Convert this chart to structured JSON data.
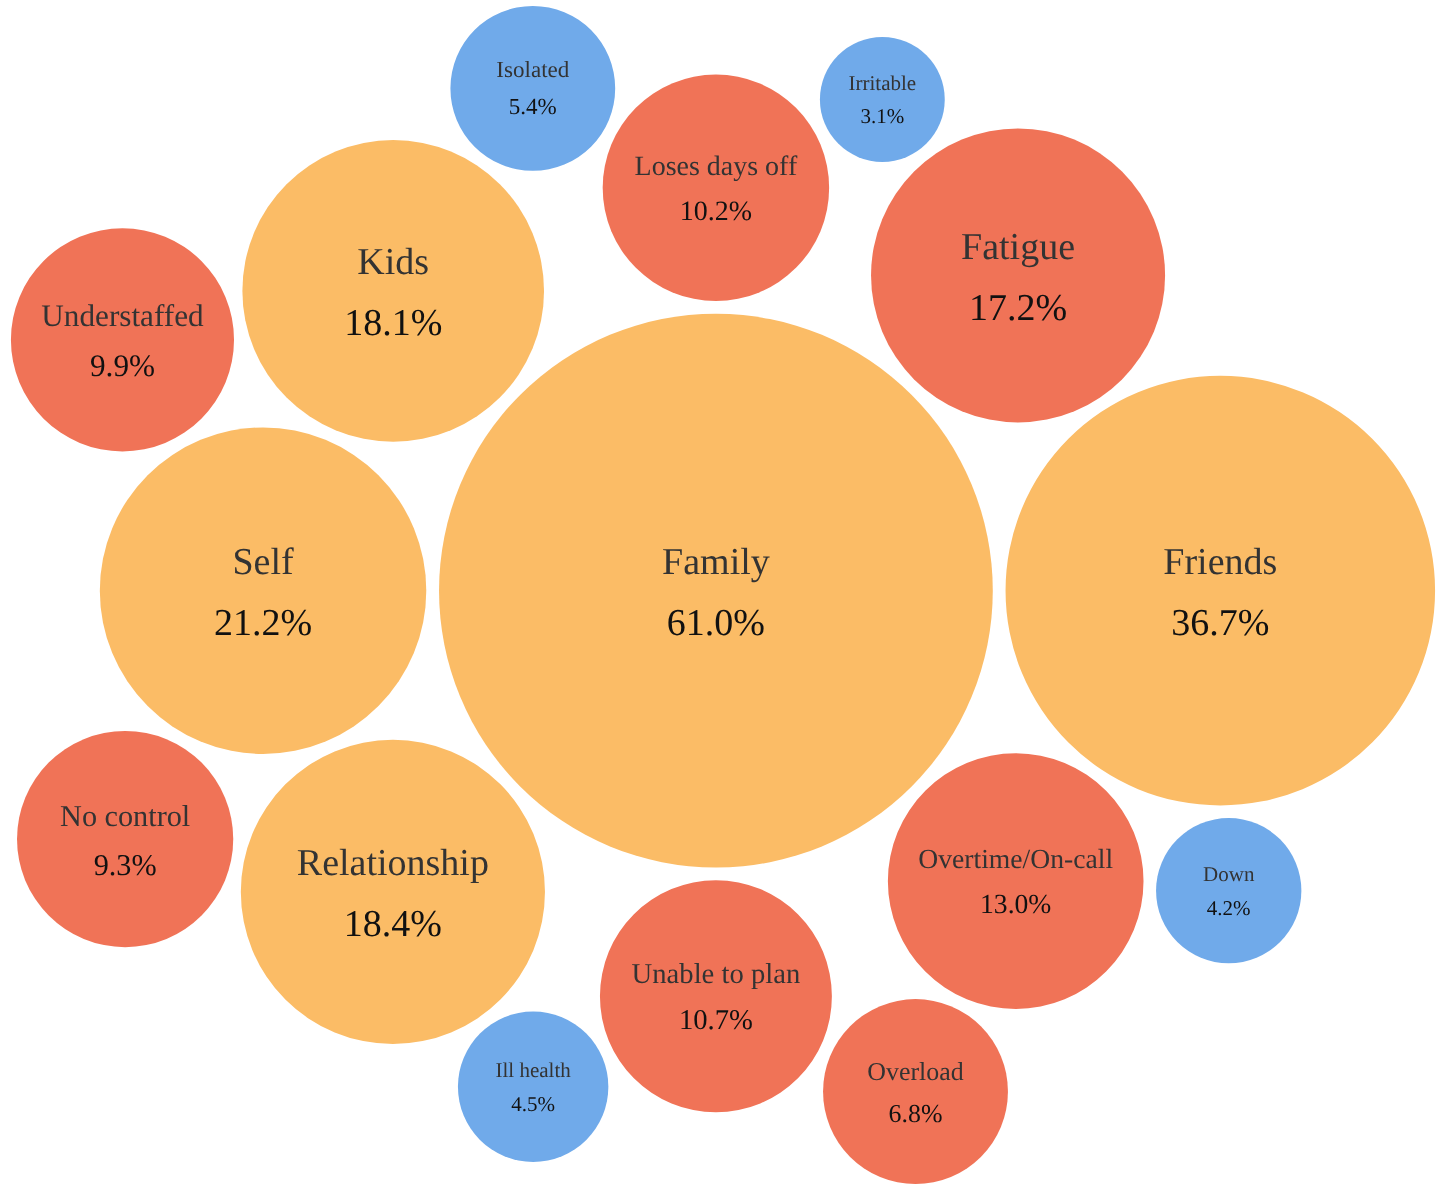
{
  "chart_data": {
    "type": "other",
    "categories": [
      "Family",
      "Friends",
      "Self",
      "Relationship",
      "Kids",
      "Fatigue",
      "Overtime/On-call",
      "Unable to plan",
      "Loses days off",
      "Understaffed",
      "No control",
      "Overload",
      "Isolated",
      "Ill health",
      "Down",
      "Irritable"
    ],
    "values": [
      61.0,
      36.7,
      21.2,
      18.4,
      18.1,
      17.2,
      13.0,
      10.7,
      10.2,
      9.9,
      9.3,
      6.8,
      5.4,
      4.5,
      4.2,
      3.1
    ],
    "value_labels": [
      "61.0%",
      "36.7%",
      "21.2%",
      "18.4%",
      "18.1%",
      "17.2%",
      "13.0%",
      "10.7%",
      "10.2%",
      "9.9%",
      "9.3%",
      "6.8%",
      "5.4%",
      "4.5%",
      "4.2%",
      "3.1%"
    ],
    "colors": [
      "#fbbc66",
      "#fbbc66",
      "#fbbc66",
      "#fbbc66",
      "#fbbc66",
      "#f07357",
      "#f07357",
      "#f07357",
      "#f07357",
      "#f07357",
      "#f07357",
      "#f07357",
      "#70aaea",
      "#70aaea",
      "#70aaea",
      "#70aaea"
    ]
  }
}
